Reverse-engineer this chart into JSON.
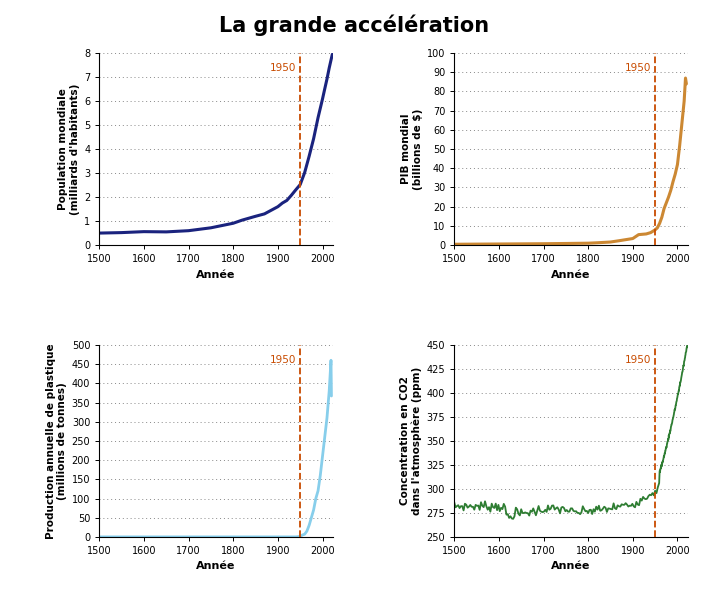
{
  "title": "La grande accélération",
  "title_fontsize": 15,
  "title_fontweight": "bold",
  "vline_year": 1950,
  "vline_color": "#c84b00",
  "vline_label": "1950",
  "xmin": 1500,
  "xmax": 2023,
  "xticks": [
    1500,
    1600,
    1700,
    1800,
    1900,
    2000
  ],
  "xlabel": "Année",
  "background_color": "#ffffff",
  "grid_color": "#888888",
  "panels": [
    {
      "ylabel": "Population mondiale\n(milliards d'habitants)",
      "ylim": [
        0,
        8
      ],
      "yticks": [
        0,
        1,
        2,
        3,
        4,
        5,
        6,
        7,
        8
      ],
      "color": "#1a237e",
      "linewidth": 2.2
    },
    {
      "ylabel": "PIB mondial\n(billions de $)",
      "ylim": [
        0,
        100
      ],
      "yticks": [
        0,
        10,
        20,
        30,
        40,
        50,
        60,
        70,
        80,
        90,
        100
      ],
      "color": "#cc8833",
      "linewidth": 2.2
    },
    {
      "ylabel": "Production annuelle de plastique\n(millions de tonnes)",
      "ylim": [
        0,
        500
      ],
      "yticks": [
        0,
        50,
        100,
        150,
        200,
        250,
        300,
        350,
        400,
        450,
        500
      ],
      "color": "#87ceeb",
      "linewidth": 2.0
    },
    {
      "ylabel": "Concentration en CO2\ndans l'atmosphère (ppm)",
      "ylim": [
        250,
        450
      ],
      "yticks": [
        250,
        275,
        300,
        325,
        350,
        375,
        400,
        425,
        450
      ],
      "color": "#2e7d32",
      "linewidth": 1.3
    }
  ]
}
